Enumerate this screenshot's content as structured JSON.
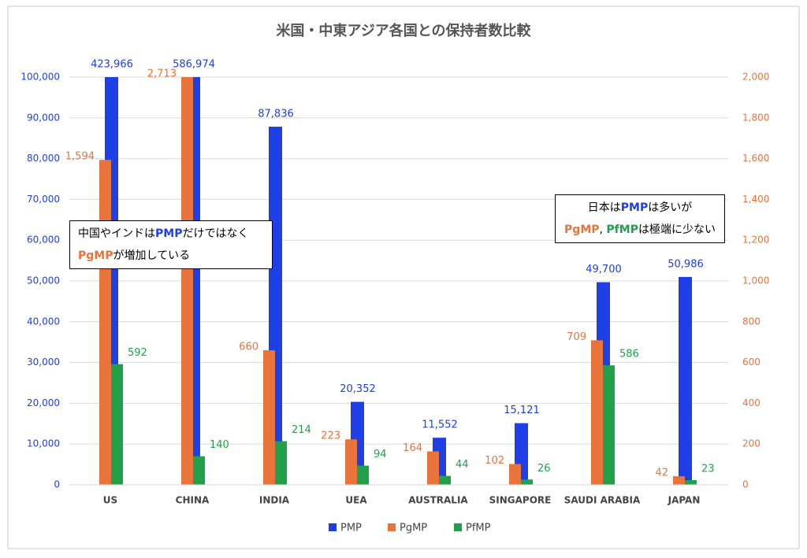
{
  "chart_data": {
    "type": "bar",
    "title": "米国・中東アジア各国との保持者数比較",
    "categories": [
      "US",
      "CHINA",
      "INDIA",
      "UEA",
      "AUSTRALIA",
      "SINGAPORE",
      "SAUDI ARABIA",
      "JAPAN"
    ],
    "series": [
      {
        "name": "PMP",
        "color": "#1f3fe6",
        "axis": "y",
        "values": [
          423966,
          586974,
          87836,
          20352,
          11552,
          15121,
          49700,
          50986
        ],
        "value_labels": [
          "423,966",
          "586,974",
          "87,836",
          "20,352",
          "11,552",
          "15,121",
          "49,700",
          "50,986"
        ]
      },
      {
        "name": "PgMP",
        "color": "#e8743b",
        "axis": "y2",
        "values": [
          1594,
          2713,
          660,
          223,
          164,
          102,
          709,
          42
        ],
        "value_labels": [
          "1,594",
          "2,713",
          "660",
          "223",
          "164",
          "102",
          "709",
          "42"
        ]
      },
      {
        "name": "PfMP",
        "color": "#22a04b",
        "axis": "y2",
        "values": [
          592,
          140,
          214,
          94,
          44,
          26,
          586,
          23
        ]
      }
    ],
    "ylim": [
      0,
      100000
    ],
    "yticks": [
      0,
      {
        "value": 10000,
        "label": "10,000"
      },
      {
        "value": 20000,
        "label": "20,000"
      },
      {
        "value": 30000,
        "label": "30,000"
      },
      {
        "value": 40000,
        "label": "40,000"
      },
      {
        "value": 50000,
        "label": "50,000"
      },
      {
        "value": 60000,
        "label": "60,000"
      },
      {
        "value": 70000,
        "label": "70,000"
      },
      {
        "value": 80000,
        "label": "80,000"
      },
      {
        "value": 90000,
        "label": "90,000"
      },
      {
        "value": 100000,
        "label": "100,000"
      }
    ],
    "y2lim": [
      0,
      2000
    ],
    "y2ticks": [
      0,
      200,
      400,
      600,
      800,
      {
        "value": 1000,
        "label": "1,000"
      },
      {
        "value": 1200,
        "label": "1,200"
      },
      {
        "value": 1400,
        "label": "1,400"
      },
      {
        "value": 1600,
        "label": "1,600"
      },
      {
        "value": 1800,
        "label": "1,800"
      },
      {
        "value": 2000,
        "label": "2,000"
      }
    ],
    "grid": true,
    "annotations": [
      {
        "lines": [
          [
            {
              "text": "中国やインドは",
              "color": "#000000"
            },
            {
              "text": "PMP",
              "color": "#1f3fe6"
            },
            {
              "text": "だけではなく",
              "color": "#000000"
            }
          ],
          [
            {
              "text": "PgMP",
              "color": "#e8743b"
            },
            {
              "text": "が増加している",
              "color": "#000000"
            }
          ]
        ]
      },
      {
        "lines": [
          [
            {
              "text": "日本は",
              "color": "#000000"
            },
            {
              "text": "PMP",
              "color": "#1f3fe6"
            },
            {
              "text": "は多いが",
              "color": "#000000"
            }
          ],
          [
            {
              "text": "PgMP",
              "color": "#e8743b"
            },
            {
              "text": ", ",
              "color": "#000000"
            },
            {
              "text": "PfMP",
              "color": "#22a04b"
            },
            {
              "text": "は極端に少ない",
              "color": "#000000"
            }
          ]
        ]
      }
    ]
  }
}
